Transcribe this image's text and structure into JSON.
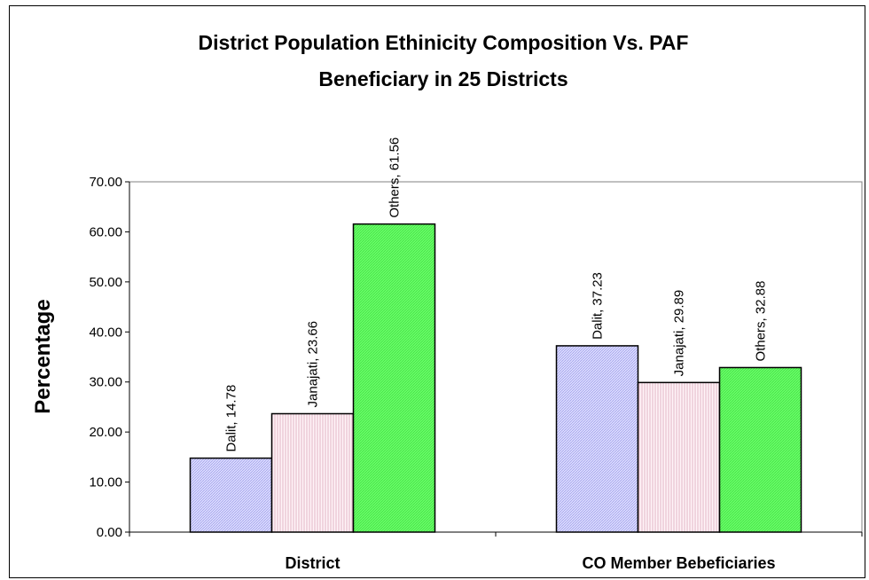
{
  "chart_data": {
    "type": "bar",
    "title": "District Population Ethinicity Composition Vs. PAF",
    "title_line2": "Beneficiary in 25 Districts",
    "xlabel": "",
    "ylabel": "Percentage",
    "ylim": [
      0,
      70
    ],
    "yticks": [
      "0.00",
      "10.00",
      "20.00",
      "30.00",
      "40.00",
      "50.00",
      "60.00",
      "70.00"
    ],
    "categories": [
      "District",
      "CO Member Bebeficiaries"
    ],
    "series": [
      {
        "name": "Dalit",
        "values": [
          14.78,
          37.23
        ],
        "color": "#ccccff",
        "labels": [
          "Dalit, 14.78",
          "Dalit, 37.23"
        ]
      },
      {
        "name": "Janajati",
        "values": [
          23.66,
          29.89
        ],
        "color": "#ffe6f0",
        "labels": [
          "Janajati, 23.66",
          "Janajati, 29.89"
        ]
      },
      {
        "name": "Others",
        "values": [
          61.56,
          32.88
        ],
        "color": "#66ff66",
        "labels": [
          "Others, 61.56",
          "Others, 32.88"
        ]
      }
    ],
    "grid": false,
    "legend": "none"
  }
}
